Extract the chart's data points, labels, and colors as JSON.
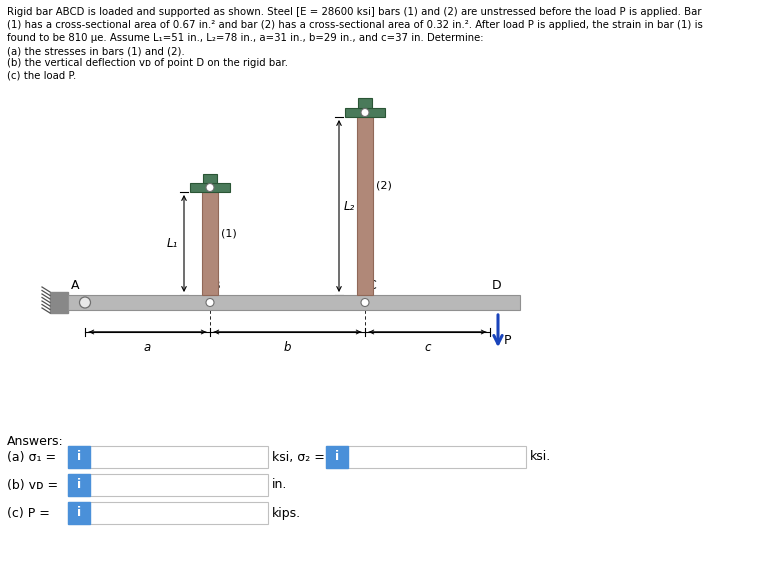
{
  "bar_color": "#b08878",
  "cap_color": "#4a7a5a",
  "rigid_color": "#b8b8b8",
  "rigid_edge": "#909090",
  "wall_color": "#888888",
  "hatch_color": "#505050",
  "pin_fill": "#e8e8e8",
  "pin_edge": "#707070",
  "arrow_color": "#1a44bb",
  "bg_color": "#ffffff",
  "text_color": "#000000",
  "answer_box_color": "#4a90d9",
  "fig_width": 7.66,
  "fig_height": 5.62,
  "header_line1": "Rigid bar ABCD is loaded and supported as shown. Steel [E = 28600 ksi] bars (1) and (2) are unstressed before the load P is applied. Bar",
  "header_line2": "(1) has a cross-sectional area of 0.67 in.² and bar (2) has a cross-sectional area of 0.32 in.². After load P is applied, the strain in bar (1) is",
  "header_line3": "found to be 810 μe. Assume L₁=51 in., L₂=78 in., a=31 in., b=29 in., and c=37 in. Determine:",
  "sub1": "(a) the stresses in bars (1) and (2).",
  "sub2": "(b) the vertical deflection vᴅ of point D on the rigid bar.",
  "sub3": "(c) the load P."
}
